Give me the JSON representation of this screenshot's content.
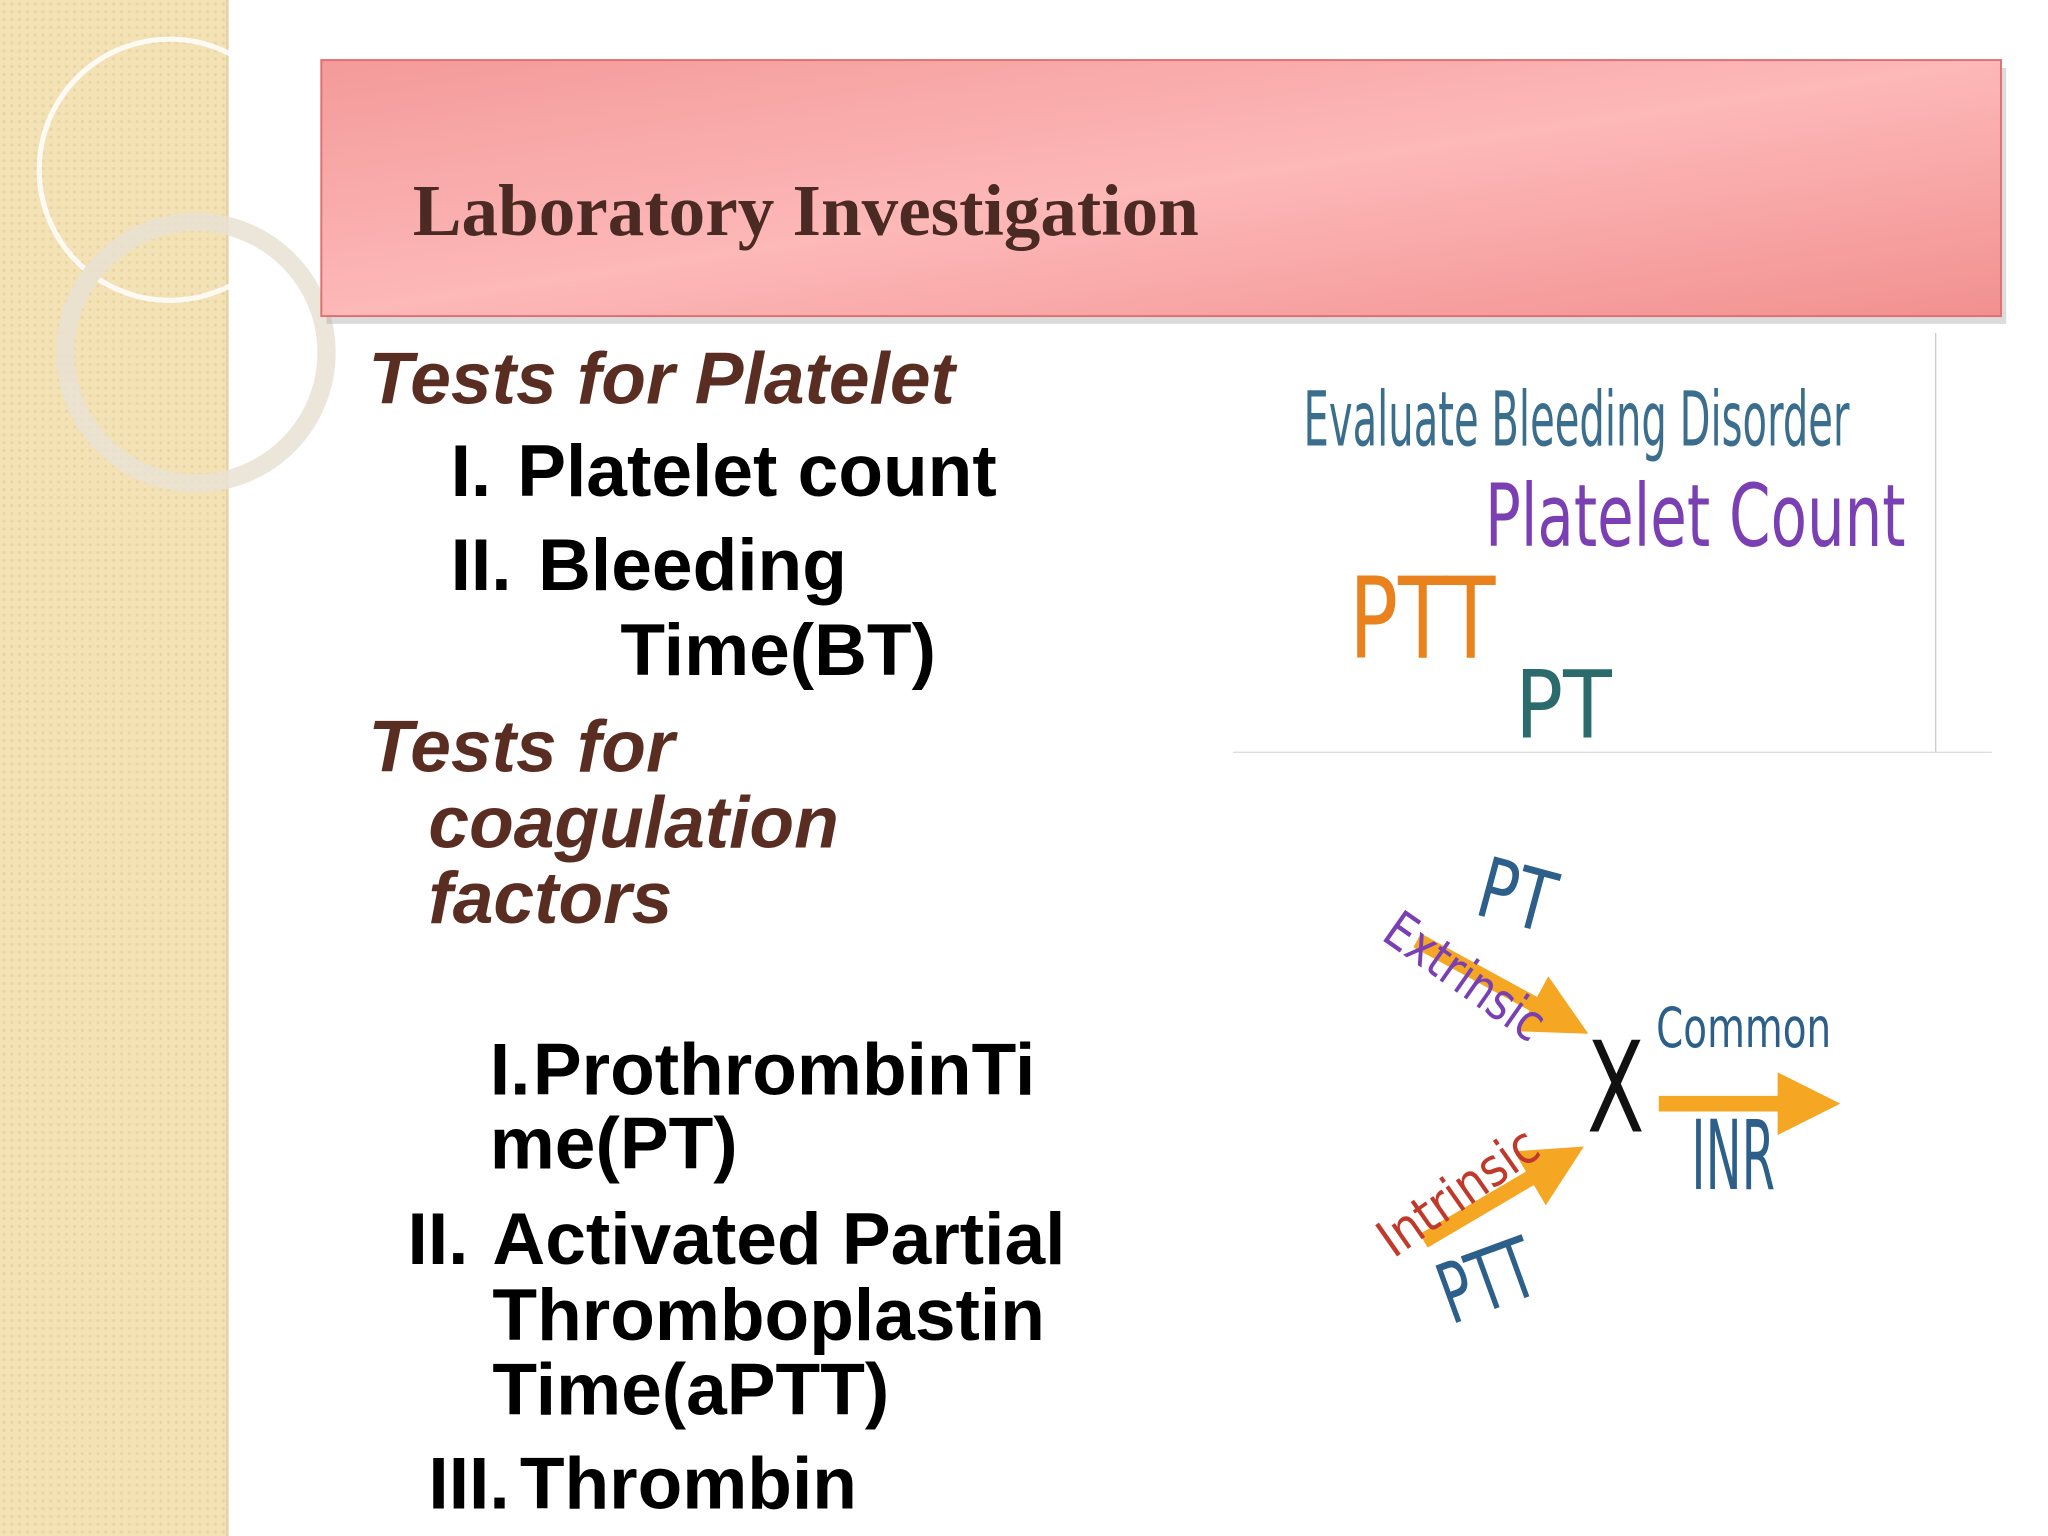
{
  "title": "Laboratory  Investigation",
  "sections": [
    {
      "heading": [
        "Tests for Platelet"
      ],
      "items": [
        {
          "number": "I.",
          "lines": [
            "Platelet count"
          ]
        },
        {
          "number": "II.",
          "lines": [
            "Bleeding",
            "Time(BT)"
          ]
        }
      ]
    },
    {
      "heading": [
        "Tests for",
        "coagulation",
        "factors"
      ],
      "items": [
        {
          "number": "I.",
          "lines": [
            "ProthrombinTi",
            "me(PT)"
          ]
        },
        {
          "number": "II.",
          "lines": [
            "Activated Partial",
            "Thromboplastin",
            "Time(aPTT)"
          ]
        },
        {
          "number": "III.",
          "lines": [
            "Thrombin"
          ]
        }
      ]
    }
  ],
  "word_cloud": [
    "Evaluate Bleeding Disorder",
    "Platelet Count",
    "PTT",
    "PT"
  ],
  "pathway": {
    "extrinsic_test": "PT",
    "extrinsic": "Extrinsic",
    "intrinsic": "Intrinsic",
    "intrinsic_test": "PTT",
    "factor": "X",
    "common": "Common",
    "common_test": "INR"
  }
}
